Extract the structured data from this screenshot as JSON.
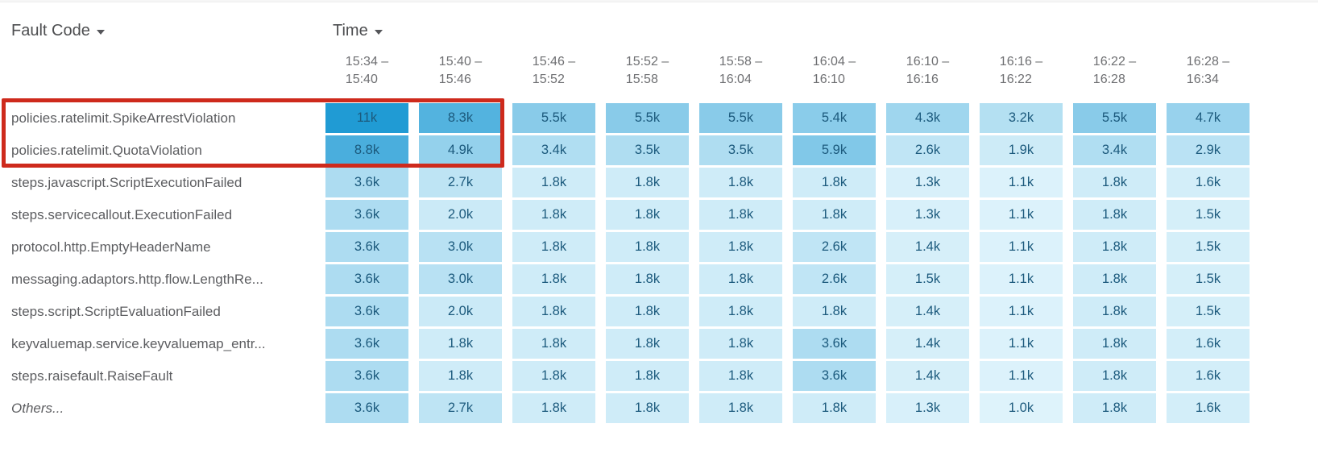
{
  "header": {
    "row_dimension": {
      "label": "Fault Code",
      "dropdown_icon": "caret-down"
    },
    "column_dimension": {
      "label": "Time",
      "dropdown_icon": "caret-down"
    }
  },
  "highlight_box": {
    "color": "#ce2a1c"
  },
  "chart_data": {
    "type": "heatmap",
    "row_axis_label": "Fault Code",
    "column_axis_label": "Time",
    "columns": [
      {
        "from": "15:34",
        "to": "15:40"
      },
      {
        "from": "15:40",
        "to": "15:46"
      },
      {
        "from": "15:46",
        "to": "15:52"
      },
      {
        "from": "15:52",
        "to": "15:58"
      },
      {
        "from": "15:58",
        "to": "16:04"
      },
      {
        "from": "16:04",
        "to": "16:10"
      },
      {
        "from": "16:10",
        "to": "16:16"
      },
      {
        "from": "16:16",
        "to": "16:22"
      },
      {
        "from": "16:22",
        "to": "16:28"
      },
      {
        "from": "16:28",
        "to": "16:34"
      }
    ],
    "rows": [
      {
        "label": "policies.ratelimit.SpikeArrestViolation",
        "italic": false,
        "values": [
          "11k",
          "8.3k",
          "5.5k",
          "5.5k",
          "5.5k",
          "5.4k",
          "4.3k",
          "3.2k",
          "5.5k",
          "4.7k"
        ]
      },
      {
        "label": "policies.ratelimit.QuotaViolation",
        "italic": false,
        "values": [
          "8.8k",
          "4.9k",
          "3.4k",
          "3.5k",
          "3.5k",
          "5.9k",
          "2.6k",
          "1.9k",
          "3.4k",
          "2.9k"
        ]
      },
      {
        "label": "steps.javascript.ScriptExecutionFailed",
        "italic": false,
        "values": [
          "3.6k",
          "2.7k",
          "1.8k",
          "1.8k",
          "1.8k",
          "1.8k",
          "1.3k",
          "1.1k",
          "1.8k",
          "1.6k"
        ]
      },
      {
        "label": "steps.servicecallout.ExecutionFailed",
        "italic": false,
        "values": [
          "3.6k",
          "2.0k",
          "1.8k",
          "1.8k",
          "1.8k",
          "1.8k",
          "1.3k",
          "1.1k",
          "1.8k",
          "1.5k"
        ]
      },
      {
        "label": "protocol.http.EmptyHeaderName",
        "italic": false,
        "values": [
          "3.6k",
          "3.0k",
          "1.8k",
          "1.8k",
          "1.8k",
          "2.6k",
          "1.4k",
          "1.1k",
          "1.8k",
          "1.5k"
        ]
      },
      {
        "label": "messaging.adaptors.http.flow.LengthRe...",
        "italic": false,
        "values": [
          "3.6k",
          "3.0k",
          "1.8k",
          "1.8k",
          "1.8k",
          "2.6k",
          "1.5k",
          "1.1k",
          "1.8k",
          "1.5k"
        ]
      },
      {
        "label": "steps.script.ScriptEvaluationFailed",
        "italic": false,
        "values": [
          "3.6k",
          "2.0k",
          "1.8k",
          "1.8k",
          "1.8k",
          "1.8k",
          "1.4k",
          "1.1k",
          "1.8k",
          "1.5k"
        ]
      },
      {
        "label": "keyvaluemap.service.keyvaluemap_entr...",
        "italic": false,
        "values": [
          "3.6k",
          "1.8k",
          "1.8k",
          "1.8k",
          "1.8k",
          "3.6k",
          "1.4k",
          "1.1k",
          "1.8k",
          "1.6k"
        ]
      },
      {
        "label": "steps.raisefault.RaiseFault",
        "italic": false,
        "values": [
          "3.6k",
          "1.8k",
          "1.8k",
          "1.8k",
          "1.8k",
          "3.6k",
          "1.4k",
          "1.1k",
          "1.8k",
          "1.6k"
        ]
      },
      {
        "label": "Others...",
        "italic": true,
        "values": [
          "3.6k",
          "2.7k",
          "1.8k",
          "1.8k",
          "1.8k",
          "1.8k",
          "1.3k",
          "1.0k",
          "1.8k",
          "1.6k"
        ]
      }
    ],
    "color_scale": {
      "min_value": 1000,
      "max_value": 11000,
      "min_color": "#def3fb",
      "max_color": "#209bd4"
    },
    "cell_text_color": "#1c5a7d"
  }
}
